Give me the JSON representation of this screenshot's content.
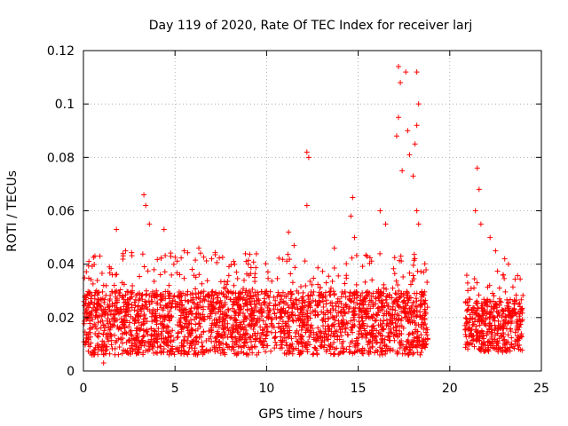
{
  "chart_data": {
    "type": "scatter",
    "title": "Day 119 of 2020, Rate Of TEC Index for receiver larj",
    "xlabel": "GPS time / hours",
    "ylabel": "ROTI / TECUs",
    "xlim": [
      0,
      25
    ],
    "ylim": [
      0,
      0.12
    ],
    "x_ticks": [
      0,
      5,
      10,
      15,
      20,
      25
    ],
    "y_ticks": [
      0,
      0.02,
      0.04,
      0.06,
      0.08,
      0.1,
      0.12
    ],
    "x_tick_labels": [
      "0",
      "5",
      "10",
      "15",
      "20",
      "25"
    ],
    "y_tick_labels": [
      "0",
      "0.02",
      "0.04",
      "0.06",
      "0.08",
      "0.1",
      "0.12"
    ],
    "grid": true,
    "marker": "+",
    "series": [
      {
        "name": "ROTI",
        "color": "#ff0000",
        "segments": [
          {
            "x_start": 0.0,
            "x_end": 18.8,
            "baseline": 0.018,
            "spread": 0.012
          },
          {
            "x_start": 20.8,
            "x_end": 24.0,
            "baseline": 0.017,
            "spread": 0.01
          }
        ],
        "notable_points": [
          {
            "x": 0.3,
            "y": 0.041
          },
          {
            "x": 0.9,
            "y": 0.043
          },
          {
            "x": 1.1,
            "y": 0.003
          },
          {
            "x": 1.8,
            "y": 0.053
          },
          {
            "x": 2.3,
            "y": 0.045
          },
          {
            "x": 3.3,
            "y": 0.066
          },
          {
            "x": 3.4,
            "y": 0.062
          },
          {
            "x": 3.6,
            "y": 0.055
          },
          {
            "x": 4.4,
            "y": 0.053
          },
          {
            "x": 5.5,
            "y": 0.045
          },
          {
            "x": 6.3,
            "y": 0.046
          },
          {
            "x": 7.0,
            "y": 0.042
          },
          {
            "x": 8.2,
            "y": 0.041
          },
          {
            "x": 9.0,
            "y": 0.04
          },
          {
            "x": 11.2,
            "y": 0.052
          },
          {
            "x": 11.5,
            "y": 0.047
          },
          {
            "x": 12.2,
            "y": 0.082
          },
          {
            "x": 12.3,
            "y": 0.08
          },
          {
            "x": 12.2,
            "y": 0.062
          },
          {
            "x": 13.7,
            "y": 0.046
          },
          {
            "x": 14.6,
            "y": 0.058
          },
          {
            "x": 14.7,
            "y": 0.065
          },
          {
            "x": 14.8,
            "y": 0.05
          },
          {
            "x": 16.2,
            "y": 0.06
          },
          {
            "x": 16.5,
            "y": 0.055
          },
          {
            "x": 17.2,
            "y": 0.114
          },
          {
            "x": 17.3,
            "y": 0.108
          },
          {
            "x": 17.2,
            "y": 0.095
          },
          {
            "x": 17.4,
            "y": 0.075
          },
          {
            "x": 17.1,
            "y": 0.088
          },
          {
            "x": 17.6,
            "y": 0.112
          },
          {
            "x": 17.7,
            "y": 0.09
          },
          {
            "x": 17.8,
            "y": 0.081
          },
          {
            "x": 18.2,
            "y": 0.112
          },
          {
            "x": 18.3,
            "y": 0.1
          },
          {
            "x": 18.2,
            "y": 0.092
          },
          {
            "x": 18.1,
            "y": 0.085
          },
          {
            "x": 18.0,
            "y": 0.073
          },
          {
            "x": 18.2,
            "y": 0.06
          },
          {
            "x": 18.3,
            "y": 0.055
          },
          {
            "x": 21.5,
            "y": 0.076
          },
          {
            "x": 21.6,
            "y": 0.068
          },
          {
            "x": 21.4,
            "y": 0.06
          },
          {
            "x": 21.7,
            "y": 0.055
          },
          {
            "x": 22.2,
            "y": 0.05
          },
          {
            "x": 22.5,
            "y": 0.045
          },
          {
            "x": 23.0,
            "y": 0.042
          },
          {
            "x": 23.2,
            "y": 0.04
          }
        ]
      }
    ]
  }
}
